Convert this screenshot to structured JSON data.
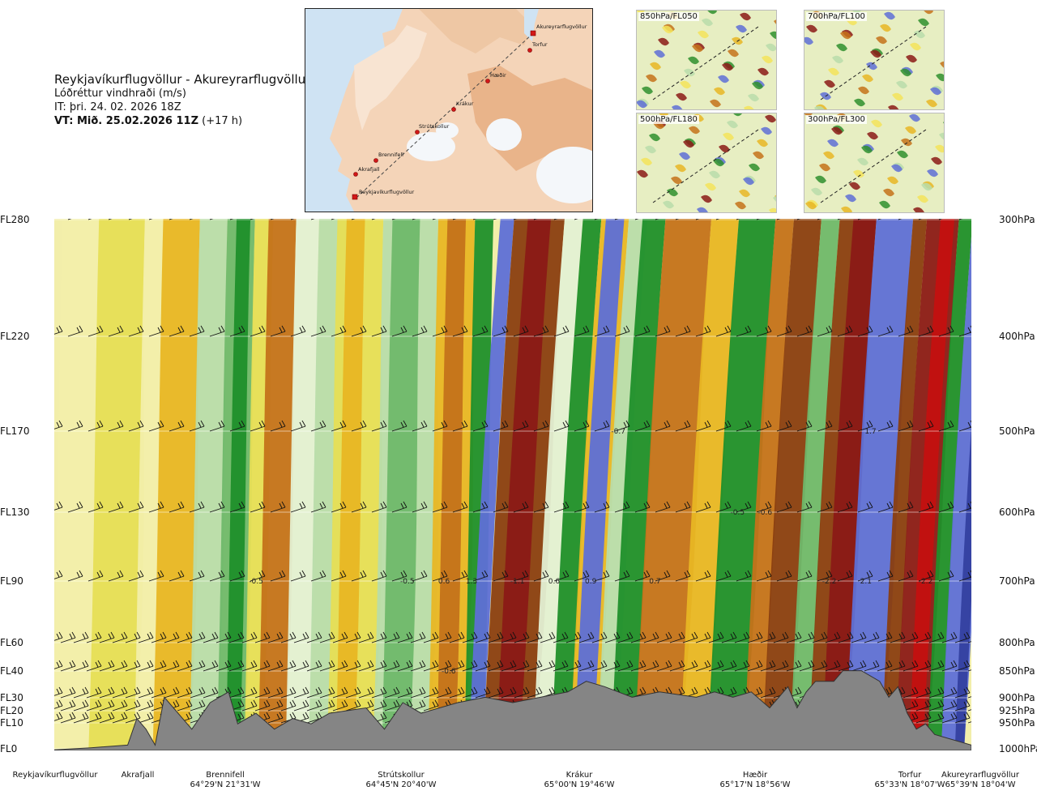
{
  "header": {
    "title": "Reykjavíkurflugvöllur - Akureyrarflugvöllur",
    "subtitle": "Lóðréttur vindhraði (m/s)",
    "init_time": "IT: þri. 24. 02. 2026 18Z",
    "valid_prefix": "VT: Mið. 25.02.2026 11Z",
    "valid_suffix": "(+17 h)"
  },
  "route_map": {
    "points": [
      {
        "name": "Akureyrarflugvöllur"
      },
      {
        "name": "Torfur"
      },
      {
        "name": "Hæðir"
      },
      {
        "name": "Krákur"
      },
      {
        "name": "Strútskollur"
      },
      {
        "name": "Brennifell"
      },
      {
        "name": "Akrafjall"
      },
      {
        "name": "Reykjavíkurflugvöllur"
      }
    ]
  },
  "thumbnails": [
    {
      "label": "850hPa/FL050"
    },
    {
      "label": "700hPa/FL100"
    },
    {
      "label": "500hPa/FL180"
    },
    {
      "label": "300hPa/FL300"
    }
  ],
  "chart_data": {
    "type": "heatmap",
    "title": "Lóðréttur vindhraði (m/s)",
    "left_axis_labels": [
      "FL280",
      "FL220",
      "FL170",
      "FL130",
      "FL90",
      "FL60",
      "FL40",
      "FL30",
      "FL20",
      "FL10",
      "FL0"
    ],
    "right_axis_labels": [
      "300hPa",
      "400hPa",
      "500hPa",
      "600hPa",
      "700hPa",
      "800hPa",
      "850hPa",
      "900hPa",
      "925hPa",
      "950hPa",
      "1000hPa"
    ],
    "levels_hpa": [
      300,
      400,
      500,
      600,
      700,
      800,
      850,
      900,
      925,
      950,
      1000
    ],
    "stations": [
      {
        "name": "Reykjavíkurflugvöllur",
        "coord": ""
      },
      {
        "name": "Akrafjall",
        "coord": ""
      },
      {
        "name": "Brennifell",
        "coord": "64°29'N 21°31'W"
      },
      {
        "name": "Strútskollur",
        "coord": "64°45'N 20°40'W"
      },
      {
        "name": "Krákur",
        "coord": "65°00'N 19°46'W"
      },
      {
        "name": "Hæðir",
        "coord": "65°17'N 18°56'W"
      },
      {
        "name": "Torfur",
        "coord": "65°33'N 18°07'W"
      },
      {
        "name": "Akureyrarflugvöllur",
        "coord": "65°39'N 18°04'W"
      }
    ],
    "value_labels": [
      {
        "text": "-0.5",
        "level_hpa": 700,
        "distance": 0.22
      },
      {
        "text": "-0.5",
        "level_hpa": 700,
        "distance": 0.385
      },
      {
        "text": "0.6",
        "level_hpa": 700,
        "distance": 0.425
      },
      {
        "text": "1.3",
        "level_hpa": 700,
        "distance": 0.455
      },
      {
        "text": "-1.1",
        "level_hpa": 700,
        "distance": 0.505
      },
      {
        "text": "0.6",
        "level_hpa": 700,
        "distance": 0.545
      },
      {
        "text": "0.9",
        "level_hpa": 700,
        "distance": 0.585
      },
      {
        "text": "0.7",
        "level_hpa": 700,
        "distance": 0.655
      },
      {
        "text": "-2.2",
        "level_hpa": 700,
        "distance": 0.845
      },
      {
        "text": "2.1",
        "level_hpa": 700,
        "distance": 0.885
      },
      {
        "text": "-2.2",
        "level_hpa": 700,
        "distance": 0.95
      },
      {
        "text": "-0.7",
        "level_hpa": 500,
        "distance": 0.615
      },
      {
        "text": "1.7",
        "level_hpa": 500,
        "distance": 0.89
      },
      {
        "text": "-0.5",
        "level_hpa": 600,
        "distance": 0.745
      },
      {
        "text": "-0.6",
        "level_hpa": 600,
        "distance": 0.775
      },
      {
        "text": "-0.6",
        "level_hpa": 850,
        "distance": 0.43
      }
    ],
    "colors": {
      "strong_down": "#c41010",
      "down": "#8b1a16",
      "mod_down": "#8a3e10",
      "weak_down_3": "#c4721a",
      "weak_down_2": "#e8b624",
      "weak_down_1": "#e6de55",
      "near_zero_down": "#f2eeaa",
      "near_zero_up": "#e3f0d3",
      "weak_up_1": "#b8dcaa",
      "weak_up_2": "#6fb86a",
      "mod_up": "#1f8f2a",
      "up": "#5e6fd6",
      "strong_up": "#3440a0",
      "terrain": "#858585"
    }
  }
}
